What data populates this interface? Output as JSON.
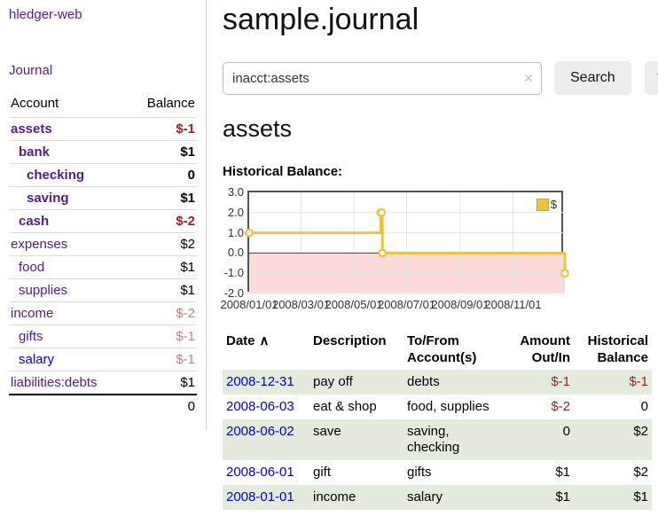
{
  "app": {
    "brand": "hledger-web",
    "nav": {
      "journal": "Journal"
    }
  },
  "sidebar": {
    "header": {
      "account": "Account",
      "balance": "Balance"
    },
    "accounts": [
      {
        "name": "assets",
        "depth": 0,
        "bold": true,
        "balance": "$-1",
        "balance_tone": "negative"
      },
      {
        "name": "bank",
        "depth": 1,
        "bold": true,
        "balance": "$1",
        "balance_tone": "normal"
      },
      {
        "name": "checking",
        "depth": 2,
        "bold": true,
        "balance": "0",
        "balance_tone": "normal"
      },
      {
        "name": "saving",
        "depth": 2,
        "bold": true,
        "balance": "$1",
        "balance_tone": "normal"
      },
      {
        "name": "cash",
        "depth": 1,
        "bold": true,
        "balance": "$-2",
        "balance_tone": "negative"
      },
      {
        "name": "expenses",
        "depth": 0,
        "bold": false,
        "balance": "$2",
        "balance_tone": "normal"
      },
      {
        "name": "food",
        "depth": 1,
        "bold": false,
        "balance": "$1",
        "balance_tone": "normal"
      },
      {
        "name": "supplies",
        "depth": 1,
        "bold": false,
        "balance": "$1",
        "balance_tone": "normal"
      },
      {
        "name": "income",
        "depth": 0,
        "bold": false,
        "balance": "$-2",
        "balance_tone": "negative-dim"
      },
      {
        "name": "gifts",
        "depth": 1,
        "bold": false,
        "balance": "$-1",
        "balance_tone": "negative-dim"
      },
      {
        "name": "salary",
        "depth": 1,
        "bold": false,
        "balance": "$-1",
        "balance_tone": "negative-dim",
        "link_tone": "unvisited"
      },
      {
        "name": "liabilities:debts",
        "depth": 0,
        "bold": false,
        "balance": "$1",
        "balance_tone": "normal"
      }
    ],
    "total": "0"
  },
  "main": {
    "title": "sample.journal",
    "search": {
      "value": "inacct:assets",
      "clear_icon": "×",
      "button_label": "Search",
      "help_label": "?"
    },
    "account_heading": "assets",
    "chart_label": "Historical Balance:"
  },
  "chart_data": {
    "type": "line",
    "title": "Historical Balance",
    "series": [
      {
        "name": "$",
        "color": "#edc240",
        "steps": true,
        "points": [
          [
            "2008-01-01",
            1
          ],
          [
            "2008-06-01",
            2
          ],
          [
            "2008-06-02",
            2
          ],
          [
            "2008-06-03",
            0
          ],
          [
            "2008-12-31",
            -1
          ]
        ]
      }
    ],
    "x_range": [
      "2008-01-01",
      "2008-12-31"
    ],
    "x_tick_labels": [
      "2008/01/01",
      "2008/03/01",
      "2008/05/01",
      "2008/07/01",
      "2008/09/01",
      "2008/11/01"
    ],
    "y_ticks": [
      "3.0",
      "2.0",
      "1.0",
      "0.0",
      "-1.0",
      "-2.0"
    ],
    "ylim": [
      -2,
      3
    ],
    "grid": true,
    "legend": {
      "label": "$",
      "position": "top-right"
    },
    "negative_region_color": "#fbdada",
    "zero_line_color": "#8b1a1a",
    "gridline_color": "#e6e6e6"
  },
  "register": {
    "headers": {
      "date": {
        "label": "Date",
        "sort_icon": "∧"
      },
      "description": [
        "Description"
      ],
      "tofrom": [
        "To/From",
        "Account(s)"
      ],
      "amount": [
        "Amount",
        "Out/In"
      ],
      "historical": [
        "Historical",
        "Balance"
      ]
    },
    "rows": [
      {
        "date": "2008-12-31",
        "description": "pay off",
        "accounts": "debts",
        "amount": "$-1",
        "amount_tone": "negative",
        "balance": "$-1",
        "balance_tone": "negative",
        "striped": true
      },
      {
        "date": "2008-06-03",
        "description": "eat & shop",
        "accounts": "food, supplies",
        "amount": "$-2",
        "amount_tone": "negative",
        "balance": "0",
        "balance_tone": "normal",
        "striped": false
      },
      {
        "date": "2008-06-02",
        "description": "save",
        "accounts": "saving,\nchecking",
        "amount": "0",
        "amount_tone": "normal",
        "balance": "$2",
        "balance_tone": "normal",
        "striped": true
      },
      {
        "date": "2008-06-01",
        "description": "gift",
        "accounts": "gifts",
        "amount": "$1",
        "amount_tone": "normal",
        "balance": "$2",
        "balance_tone": "normal",
        "striped": false
      },
      {
        "date": "2008-01-01",
        "description": "income",
        "accounts": "salary",
        "amount": "$1",
        "amount_tone": "normal",
        "balance": "$1",
        "balance_tone": "normal",
        "striped": true
      }
    ]
  },
  "colors": {
    "link_purple": "#551a8b",
    "link_blue": "#0000cc",
    "negative_strong": "#9b1f1f",
    "negative_dim": "#c17f7f",
    "stripe_green": "#e3ebdd",
    "chart_line": "#edc240"
  }
}
